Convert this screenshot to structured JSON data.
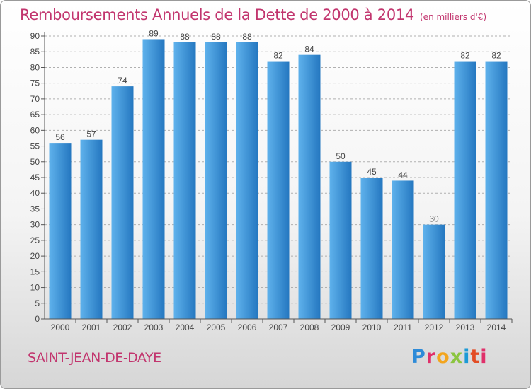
{
  "header": {
    "title": "Remboursements Annuels de la Dette de 2000 à 2014",
    "subtitle": "(en milliers d'€)"
  },
  "footer": {
    "commune": "SAINT-JEAN-DE-DAYE",
    "logo_letters": [
      "P",
      "r",
      "o",
      "x",
      "i",
      "t",
      "i"
    ]
  },
  "colors": {
    "title": "#c2356e",
    "bar_light": "#5fb2ec",
    "bar_dark": "#2477c0",
    "axis": "#555555",
    "grid": "#b0b0b0"
  },
  "chart_data": {
    "type": "bar",
    "title": "Remboursements Annuels de la Dette de 2000 à 2014",
    "subtitle": "(en milliers d'€)",
    "xlabel": "",
    "ylabel": "",
    "categories": [
      "2000",
      "2001",
      "2002",
      "2003",
      "2004",
      "2005",
      "2006",
      "2007",
      "2008",
      "2009",
      "2010",
      "2011",
      "2012",
      "2013",
      "2014"
    ],
    "values": [
      56,
      57,
      74,
      89,
      88,
      88,
      88,
      82,
      84,
      50,
      45,
      44,
      30,
      82,
      82
    ],
    "ylim": [
      0,
      90
    ],
    "yticks": [
      0,
      5,
      10,
      15,
      20,
      25,
      30,
      35,
      40,
      45,
      50,
      55,
      60,
      65,
      70,
      75,
      80,
      85,
      90
    ],
    "grid": true,
    "data_labels": true
  }
}
